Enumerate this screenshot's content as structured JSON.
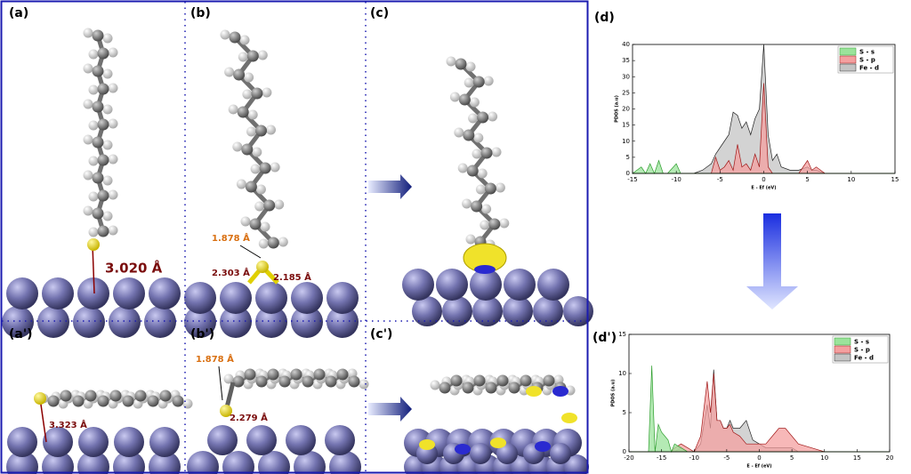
{
  "panels": [
    {
      "label": "(a)"
    },
    {
      "label": "(b)"
    },
    {
      "label": "(c)"
    },
    {
      "label": "(a')"
    },
    {
      "label": "(b')"
    },
    {
      "label": "(c')"
    }
  ],
  "distances": {
    "a": [
      "3.020 Å"
    ],
    "b": [
      "1.878 Å",
      "2.303 Å",
      "2.185 Å"
    ],
    "a_prime": [
      "3.323 Å"
    ],
    "b_prime": [
      "1.878 Å",
      "2.279 Å"
    ]
  },
  "chart_data": [
    {
      "type": "area",
      "title": "(d)",
      "x_label": "E - Ef (eV)",
      "y_label": "PDOS (a.u)",
      "x": [
        -15,
        -14,
        -13.5,
        -13,
        -12.5,
        -12,
        -11.5,
        -11,
        -10,
        -9.5,
        -9,
        -8,
        -7,
        -6,
        -5.5,
        -5,
        -4.5,
        -4,
        -3.5,
        -3,
        -2.5,
        -2,
        -1.5,
        -1,
        -0.5,
        0,
        0.5,
        1,
        1.5,
        2,
        3,
        4,
        5,
        5.5,
        6,
        7,
        8,
        10,
        15
      ],
      "series": [
        {
          "name": "S - s",
          "color": "#2e9e2e",
          "fill": "#9be39b",
          "values": [
            0,
            2,
            0,
            3,
            0,
            4,
            0,
            0,
            3,
            0,
            0,
            0,
            0,
            0,
            0,
            0,
            0,
            0,
            0,
            0,
            0,
            0,
            0,
            0,
            0,
            0,
            0,
            0,
            0,
            0,
            0,
            0,
            0,
            0,
            0,
            0,
            0,
            0,
            0
          ]
        },
        {
          "name": "S - p",
          "color": "#a01818",
          "fill": "#f4a0a0",
          "values": [
            0,
            0,
            0,
            0,
            0,
            0,
            0,
            0,
            0,
            0,
            0,
            0,
            0,
            0,
            5,
            1,
            2,
            4,
            1,
            9,
            2,
            3,
            1,
            6,
            2,
            28,
            2,
            0,
            0,
            0,
            0,
            0,
            4,
            1,
            2,
            0,
            0,
            0,
            0
          ]
        },
        {
          "name": "Fe - d",
          "color": "#222222",
          "fill": "#c4c4c4",
          "values": [
            0,
            0,
            0,
            0,
            0,
            0,
            0,
            0,
            0,
            0,
            0,
            0,
            1,
            3,
            6,
            8,
            10,
            12,
            19,
            18,
            14,
            16,
            12,
            17,
            20,
            40,
            12,
            4,
            6,
            2,
            1,
            1,
            2,
            1,
            1,
            0,
            0,
            0,
            0
          ]
        }
      ],
      "xlim": [
        -15,
        15
      ],
      "xticks": [
        -15,
        -10,
        -5,
        0,
        5,
        10,
        15
      ],
      "ylim": [
        0,
        40
      ],
      "yticks": [
        0,
        5,
        10,
        15,
        20,
        25,
        30,
        35,
        40
      ],
      "legend": "upper right"
    },
    {
      "type": "area",
      "title": "(d')",
      "x_label": "E - Ef (eV)",
      "y_label": "PDOS (a.u)",
      "x": [
        -20,
        -18,
        -17,
        -16.5,
        -16,
        -15.5,
        -15,
        -14.5,
        -14,
        -13.5,
        -13,
        -12,
        -11,
        -10,
        -9,
        -8,
        -7.5,
        -7,
        -6.5,
        -6,
        -5.5,
        -5,
        -4.5,
        -4,
        -3,
        -2,
        -1,
        0,
        1,
        2,
        3,
        4,
        5,
        6,
        8,
        10,
        15,
        20
      ],
      "series": [
        {
          "name": "S - s",
          "color": "#2e9e2e",
          "fill": "#9be39b",
          "values": [
            0,
            0,
            0,
            11,
            0,
            3.5,
            2.5,
            2,
            1.5,
            0,
            1,
            0.5,
            0,
            0,
            0,
            0,
            0,
            0,
            0,
            0,
            0,
            0,
            0,
            0,
            0,
            0,
            0,
            0,
            0,
            0,
            0,
            0,
            0,
            0,
            0,
            0,
            0,
            0
          ]
        },
        {
          "name": "S - p",
          "color": "#a01818",
          "fill": "#f4a0a0",
          "values": [
            0,
            0,
            0,
            0,
            0,
            0,
            0,
            0,
            0,
            0,
            0.5,
            1,
            0.5,
            0,
            2,
            9,
            5,
            10,
            4,
            4,
            3,
            3,
            3.5,
            2.5,
            2,
            1,
            1,
            1,
            1,
            2,
            3,
            3,
            2,
            1,
            0.5,
            0,
            0,
            0
          ]
        },
        {
          "name": "Fe - d",
          "color": "#222222",
          "fill": "#c4c4c4",
          "values": [
            0,
            0,
            0,
            0,
            0,
            0,
            0,
            0,
            0,
            0,
            0,
            0.5,
            0,
            0,
            1,
            6,
            3,
            10.5,
            4,
            4,
            3,
            3,
            4,
            3,
            3,
            4,
            1.5,
            1,
            0.5,
            0.5,
            0.5,
            0.5,
            0.5,
            0,
            0,
            0,
            0,
            0
          ]
        }
      ],
      "xlim": [
        -20,
        20
      ],
      "xticks": [
        -20,
        -15,
        -10,
        -5,
        0,
        5,
        10,
        15,
        20
      ],
      "ylim": [
        0,
        15
      ],
      "yticks": [
        0,
        5,
        10,
        15
      ],
      "legend": "upper right"
    }
  ]
}
